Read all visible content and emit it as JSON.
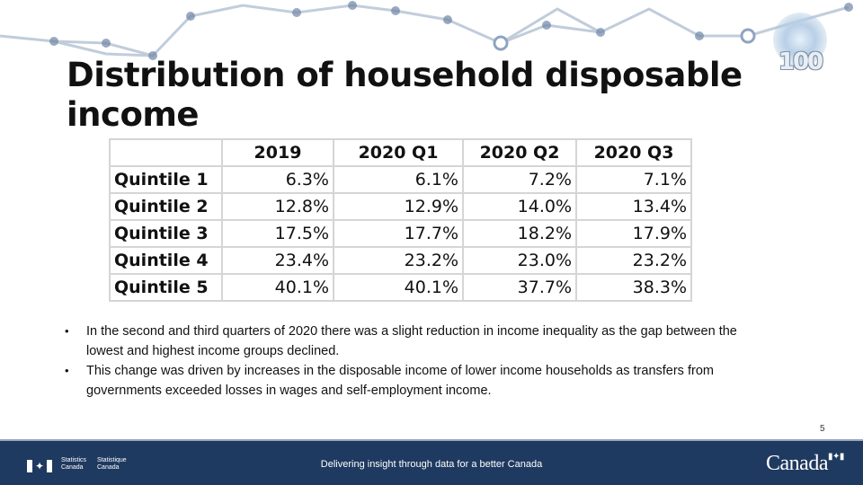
{
  "title": "Distribution of household disposable income",
  "logo": {
    "number": "100"
  },
  "table": {
    "headers": [
      "",
      "2019",
      "2020 Q1",
      "2020 Q2",
      "2020 Q3"
    ],
    "rows": [
      {
        "label": "Quintile 1",
        "values": [
          "6.3%",
          "6.1%",
          "7.2%",
          "7.1%"
        ]
      },
      {
        "label": "Quintile 2",
        "values": [
          "12.8%",
          "12.9%",
          "14.0%",
          "13.4%"
        ]
      },
      {
        "label": "Quintile 3",
        "values": [
          "17.5%",
          "17.7%",
          "18.2%",
          "17.9%"
        ]
      },
      {
        "label": "Quintile 4",
        "values": [
          "23.4%",
          "23.2%",
          "23.0%",
          "23.2%"
        ]
      },
      {
        "label": "Quintile 5",
        "values": [
          "40.1%",
          "40.1%",
          "37.7%",
          "38.3%"
        ]
      }
    ]
  },
  "bullets": [
    "In the second and third quarters of 2020 there was a slight reduction in income inequality as the gap between the lowest and highest income groups declined.",
    "This change was driven by increases in the disposable income of lower income households as transfers from governments exceeded losses in wages and self-employment income."
  ],
  "page_number": "5",
  "footer": {
    "agency_en_1": "Statistics",
    "agency_en_2": "Canada",
    "agency_fr_1": "Statistique",
    "agency_fr_2": "Canada",
    "tagline": "Delivering insight through data for a better Canada",
    "wordmark": "Canada"
  },
  "colors": {
    "footer_bg": "#1f3a60",
    "grid_line": "#d5d5d5",
    "network_line": "#8fa4bf",
    "network_node": "#6f86a6"
  }
}
